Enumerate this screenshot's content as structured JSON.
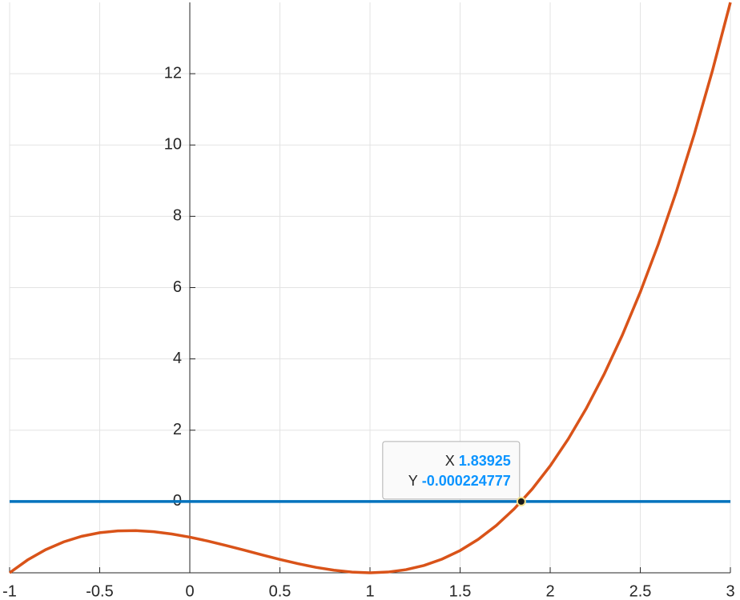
{
  "chart_data": {
    "type": "line",
    "series": [
      {
        "color": "#d95319",
        "x": [
          -1,
          -0.9,
          -0.8,
          -0.7,
          -0.6,
          -0.5,
          -0.4,
          -0.3,
          -0.2,
          -0.1,
          0,
          0.1,
          0.2,
          0.3,
          0.4,
          0.5,
          0.6,
          0.7,
          0.8,
          0.9,
          1,
          1.1,
          1.2,
          1.3,
          1.4,
          1.5,
          1.6,
          1.7,
          1.8,
          1.9,
          2,
          2.1,
          2.2,
          2.3,
          2.4,
          2.5,
          2.6,
          2.7,
          2.8,
          2.9,
          3
        ],
        "values": [
          -2,
          -1.639,
          -1.352,
          -1.133,
          -0.976,
          -0.875,
          -0.824,
          -0.817,
          -0.848,
          -0.911,
          -1,
          -1.109,
          -1.232,
          -1.363,
          -1.496,
          -1.625,
          -1.744,
          -1.847,
          -1.928,
          -1.981,
          -2,
          -1.979,
          -1.912,
          -1.793,
          -1.616,
          -1.375,
          -1.064,
          -0.677,
          -0.208,
          0.349,
          1,
          1.751,
          2.608,
          3.577,
          4.664,
          5.875,
          7.216,
          8.693,
          10.312,
          12.079,
          14
        ]
      },
      {
        "color": "#0072bd",
        "x": [
          -1,
          3
        ],
        "values": [
          0,
          0
        ]
      }
    ],
    "xlim": [
      -1,
      3
    ],
    "ylim": [
      -2,
      14
    ],
    "xticks": [
      -1,
      -0.5,
      0,
      0.5,
      1,
      1.5,
      2,
      2.5,
      3
    ],
    "yticks": [
      0,
      2,
      4,
      6,
      8,
      10,
      12
    ],
    "grid": true,
    "datatip": {
      "x_label": "X",
      "x": 1.83925,
      "y_label": "Y",
      "y": -0.000224777
    }
  }
}
